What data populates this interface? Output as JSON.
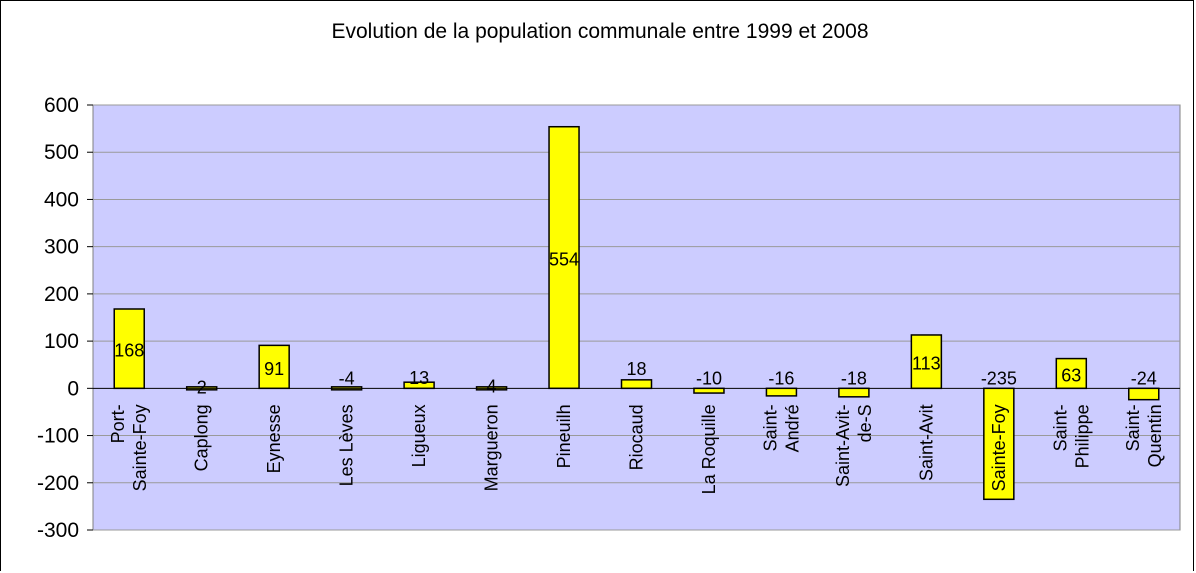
{
  "chart_data": {
    "type": "bar",
    "title": "Evolution de la population communale entre 1999 et 2008",
    "xlabel": "",
    "ylabel": "",
    "ylim": [
      -300,
      600
    ],
    "yticks": [
      600,
      500,
      400,
      300,
      200,
      100,
      0,
      -100,
      -200,
      -300
    ],
    "grid": true,
    "legend": "none",
    "categories": [
      [
        "Port-",
        "Sainte-Foy"
      ],
      [
        "Caplong"
      ],
      [
        "Eynesse"
      ],
      [
        "Les Lèves"
      ],
      [
        "Ligueux"
      ],
      [
        "Margueron"
      ],
      [
        "Pineuilh"
      ],
      [
        "Riocaud"
      ],
      [
        "La Roquille"
      ],
      [
        "Saint-",
        "André"
      ],
      [
        "Saint-Avit-",
        "de-S"
      ],
      [
        "Saint-Avit"
      ],
      [
        "Sainte-Foy"
      ],
      [
        "Saint-",
        "Philippe"
      ],
      [
        "Saint-",
        "Quentin"
      ]
    ],
    "values": [
      168,
      2,
      91,
      -4,
      13,
      4,
      554,
      18,
      -10,
      -16,
      -18,
      113,
      -235,
      63,
      -24
    ],
    "bar_color": "#ffff00",
    "plot_background": "#ccccff"
  }
}
